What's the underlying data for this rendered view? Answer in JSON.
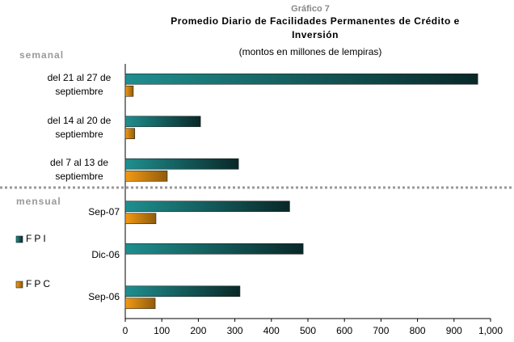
{
  "chart_data": {
    "type": "hbar",
    "kicker": "Gráfico 7",
    "title": "Promedio Diario de Facilidades Permanentes de Crédito e Inversión",
    "subtitle": "(montos en millones de lempiras)",
    "sections": [
      "semanal",
      "mensual"
    ],
    "categories": [
      "del 21 al 27 de septiembre",
      "del 14 al 20 de septiembre",
      "del 7 al 13 de septiembre",
      "Sep-07",
      "Dic-06",
      "Sep-06"
    ],
    "series": [
      {
        "name": "FPI",
        "color": "#1f8f8f",
        "values": [
          965,
          206,
          310,
          450,
          487,
          314
        ]
      },
      {
        "name": "FPC",
        "color": "#f29a14",
        "values": [
          22,
          26,
          115,
          84,
          null,
          82
        ]
      }
    ],
    "xlim": [
      0,
      1000
    ],
    "xticks": [
      0,
      100,
      200,
      300,
      400,
      500,
      600,
      700,
      800,
      900,
      {
        "value": 1000,
        "label": "1,000"
      }
    ]
  }
}
